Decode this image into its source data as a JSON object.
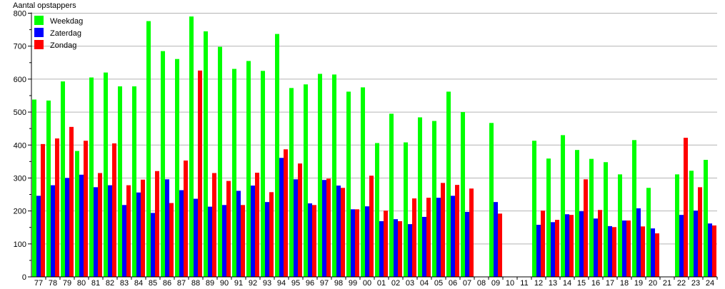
{
  "chart_data": {
    "type": "bar",
    "title": "",
    "ylabel": "Aantal opstappers",
    "xlabel": "",
    "ylim": [
      0,
      800
    ],
    "yticks": [
      0,
      100,
      200,
      300,
      400,
      500,
      600,
      700,
      800
    ],
    "grid": true,
    "legend_position": "top-left",
    "categories": [
      "77",
      "78",
      "79",
      "80",
      "81",
      "82",
      "83",
      "84",
      "85",
      "86",
      "87",
      "88",
      "89",
      "90",
      "91",
      "92",
      "93",
      "94",
      "95",
      "96",
      "97",
      "98",
      "99",
      "00",
      "01",
      "02",
      "03",
      "04",
      "05",
      "06",
      "07",
      "08",
      "09",
      "10",
      "11",
      "12",
      "13",
      "14",
      "15",
      "16",
      "17",
      "18",
      "19",
      "20",
      "21",
      "22",
      "23",
      "24"
    ],
    "series": [
      {
        "name": "Weekdag",
        "color": "#00ff00",
        "values": [
          538,
          535,
          593,
          382,
          605,
          620,
          578,
          578,
          776,
          685,
          661,
          790,
          745,
          698,
          631,
          655,
          625,
          737,
          573,
          584,
          616,
          614,
          562,
          575,
          406,
          495,
          408,
          484,
          473,
          562,
          500,
          null,
          467,
          null,
          null,
          413,
          359,
          430,
          385,
          358,
          348,
          311,
          415,
          270,
          null,
          311,
          322,
          355
        ]
      },
      {
        "name": "Zaterdag",
        "color": "#0000ff",
        "values": [
          246,
          278,
          300,
          310,
          272,
          278,
          218,
          256,
          194,
          296,
          263,
          237,
          213,
          218,
          261,
          277,
          227,
          361,
          296,
          223,
          294,
          277,
          205,
          214,
          169,
          175,
          160,
          182,
          240,
          246,
          197,
          null,
          227,
          null,
          null,
          158,
          166,
          190,
          199,
          177,
          154,
          171,
          208,
          147,
          null,
          188,
          201,
          162
        ]
      },
      {
        "name": "Zondag",
        "color": "#ff0000",
        "values": [
          403,
          420,
          455,
          413,
          315,
          405,
          278,
          295,
          321,
          224,
          353,
          626,
          315,
          291,
          218,
          316,
          257,
          387,
          344,
          218,
          298,
          270,
          205,
          307,
          201,
          169,
          238,
          240,
          285,
          279,
          268,
          null,
          192,
          null,
          null,
          201,
          173,
          188,
          296,
          203,
          151,
          171,
          153,
          132,
          null,
          422,
          272,
          156
        ]
      }
    ]
  }
}
